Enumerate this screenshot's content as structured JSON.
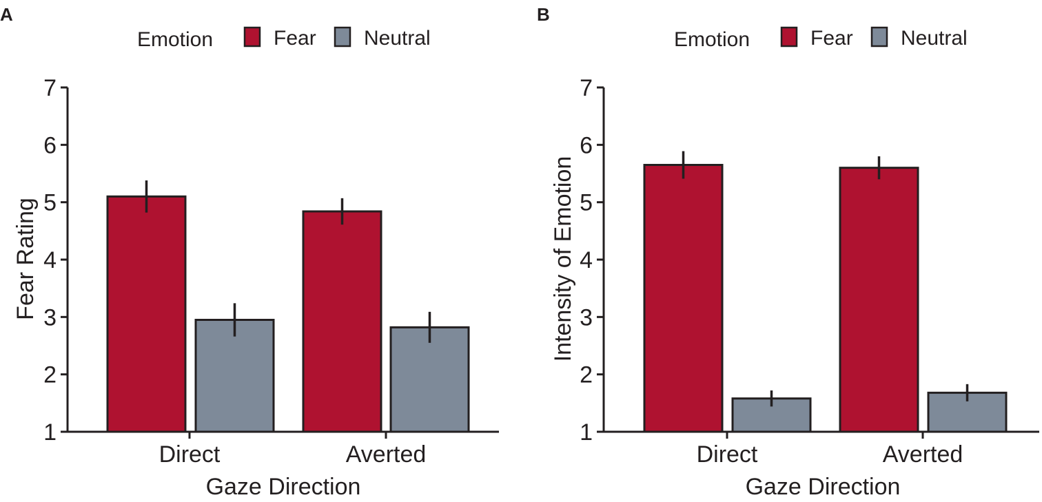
{
  "colors": {
    "fear": "#af1230",
    "neutral": "#7e8a99",
    "stroke": "#231f20"
  },
  "chart_data": [
    {
      "panel": "A",
      "type": "bar",
      "legend_title": "Emotion",
      "legend_position": "top",
      "categories": [
        "Direct",
        "Averted"
      ],
      "series": [
        {
          "name": "Fear",
          "values": [
            5.1,
            4.84
          ],
          "error": [
            0.28,
            0.23
          ]
        },
        {
          "name": "Neutral",
          "values": [
            2.95,
            2.82
          ],
          "error": [
            0.29,
            0.27
          ]
        }
      ],
      "xlabel": "Gaze Direction",
      "ylabel": "Fear Rating",
      "ylim": [
        1,
        7
      ],
      "yticks": [
        1,
        2,
        3,
        4,
        5,
        6,
        7
      ],
      "grid": false
    },
    {
      "panel": "B",
      "type": "bar",
      "legend_title": "Emotion",
      "legend_position": "top",
      "categories": [
        "Direct",
        "Averted"
      ],
      "series": [
        {
          "name": "Fear",
          "values": [
            5.65,
            5.6
          ],
          "error": [
            0.24,
            0.2
          ]
        },
        {
          "name": "Neutral",
          "values": [
            1.58,
            1.68
          ],
          "error": [
            0.14,
            0.15
          ]
        }
      ],
      "xlabel": "Gaze Direction",
      "ylabel": "Intensity of Emotion",
      "ylim": [
        1,
        7
      ],
      "yticks": [
        1,
        2,
        3,
        4,
        5,
        6,
        7
      ],
      "grid": false
    }
  ]
}
